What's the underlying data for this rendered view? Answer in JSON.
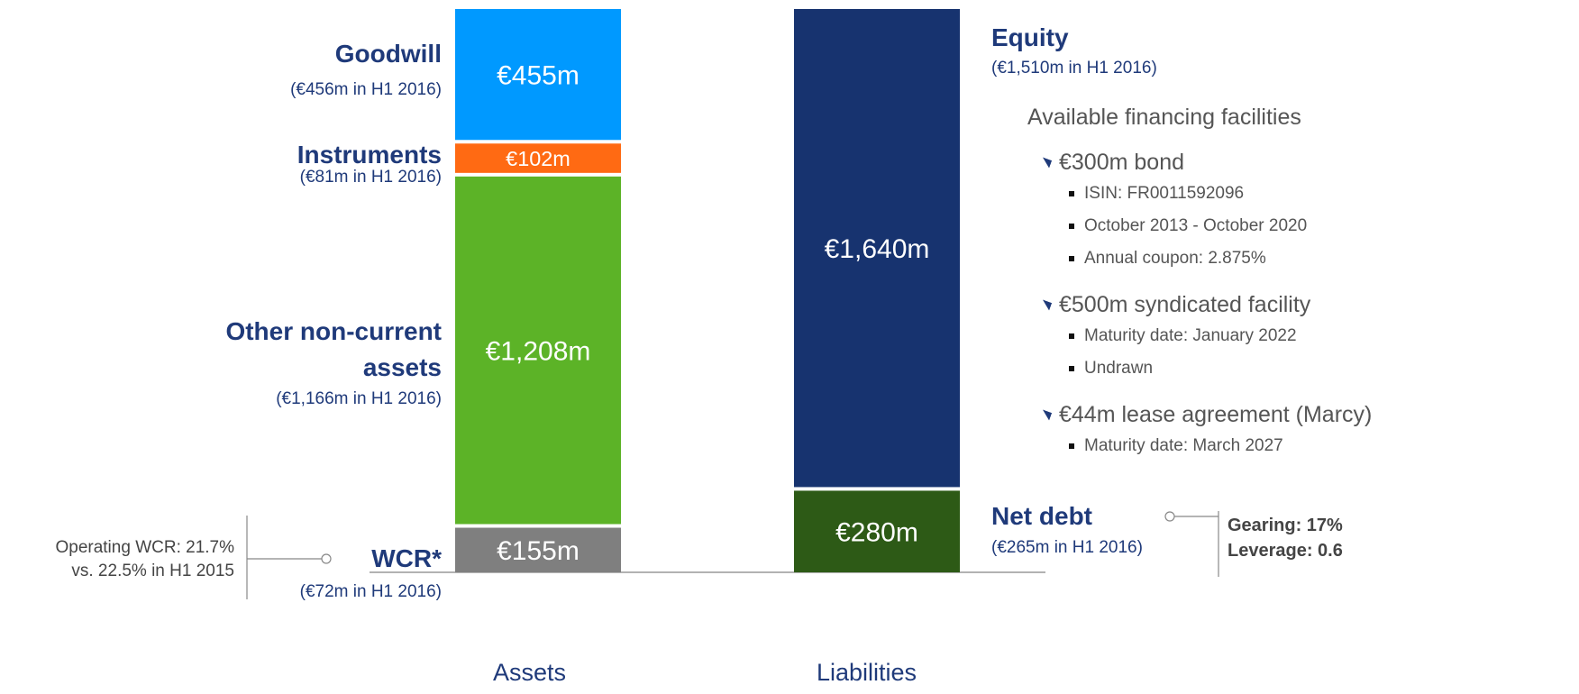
{
  "chart_data": {
    "type": "stacked-bar",
    "stacks": [
      {
        "name": "Assets",
        "segments": [
          {
            "name": "WCR*",
            "note": "(€72m in H1 2016)",
            "value": 155,
            "value_label": "€155m",
            "color": "#7f7f7f"
          },
          {
            "name": "Other non-current assets",
            "note": "(€1,166m  in H1 2016)",
            "value": 1208,
            "value_label": "€1,208m",
            "color": "#5cb327"
          },
          {
            "name": "Instruments",
            "note": "(€81m in H1 2016)",
            "value": 102,
            "value_label": "€102m",
            "color": "#ff6a13"
          },
          {
            "name": "Goodwill",
            "note": "(€456m in H1 2016)",
            "value": 455,
            "value_label": "€455m",
            "color": "#0099ff"
          }
        ]
      },
      {
        "name": "Liabilities",
        "segments": [
          {
            "name": "Net debt",
            "note": "(€265m in H1 2016)",
            "value": 280,
            "value_label": "€280m",
            "color": "#2d5a16"
          },
          {
            "name": "Equity",
            "note": "(€1,510m in H1 2016)",
            "value": 1640,
            "value_label": "€1,640m",
            "color": "#17336f"
          }
        ]
      }
    ],
    "callouts": [
      {
        "lines": [
          "Operating WCR: 21.7%",
          "vs. 22.5% in H1 2015"
        ]
      },
      {
        "lines": [
          "Gearing: 17%",
          "Leverage: 0.6"
        ]
      }
    ],
    "financing": {
      "title": "Available financing facilities",
      "items": [
        {
          "label": "€300m bond",
          "details": [
            "ISIN: FR0011592096",
            "October 2013 - October 2020",
            "Annual coupon: 2.875%"
          ]
        },
        {
          "label": "€500m syndicated facility",
          "details": [
            "Maturity date: January 2022",
            "Undrawn"
          ]
        },
        {
          "label": "€44m lease agreement (Marcy)",
          "details": [
            "Maturity date: March 2027"
          ]
        }
      ]
    }
  }
}
